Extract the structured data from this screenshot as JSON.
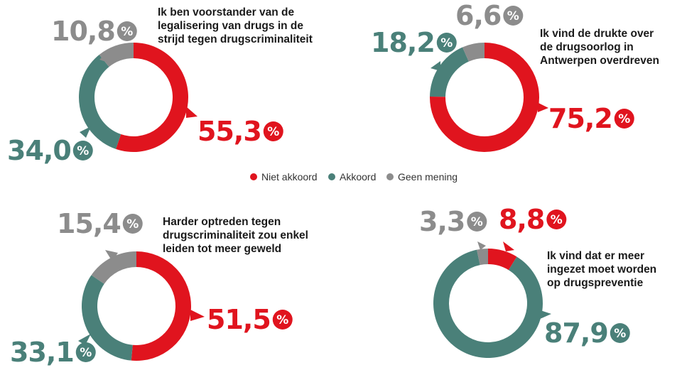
{
  "colors": {
    "niet_akkoord": "#e0141e",
    "akkoord": "#4a8079",
    "geen_mening": "#8c8c8c"
  },
  "legend": [
    "Niet akkoord",
    "Akkoord",
    "Geen mening"
  ],
  "percent_symbol": "%",
  "chart_data": [
    {
      "type": "pie",
      "title_lines": [
        "Ik ben voorstander van de",
        "legalisering van drugs in de",
        "strijd tegen drugscriminaliteit"
      ],
      "categories": [
        "Niet akkoord",
        "Akkoord",
        "Geen mening"
      ],
      "values": [
        55.3,
        34.0,
        10.8
      ],
      "labels": [
        "55,3",
        "34,0",
        "10,8"
      ]
    },
    {
      "type": "pie",
      "title_lines": [
        "Ik vind de drukte over",
        "de drugsoorlog in",
        "Antwerpen overdreven"
      ],
      "categories": [
        "Niet akkoord",
        "Akkoord",
        "Geen mening"
      ],
      "values": [
        75.2,
        18.2,
        6.6
      ],
      "labels": [
        "75,2",
        "18,2",
        "6,6"
      ]
    },
    {
      "type": "pie",
      "title_lines": [
        "Harder optreden tegen",
        "drugscriminaliteit zou enkel",
        "leiden tot meer geweld"
      ],
      "categories": [
        "Niet akkoord",
        "Akkoord",
        "Geen mening"
      ],
      "values": [
        51.5,
        33.1,
        15.4
      ],
      "labels": [
        "51,5",
        "33,1",
        "15,4"
      ]
    },
    {
      "type": "pie",
      "title_lines": [
        "Ik vind dat er meer",
        "ingezet moet worden",
        "op drugspreventie"
      ],
      "categories": [
        "Niet akkoord",
        "Akkoord",
        "Geen mening"
      ],
      "values": [
        8.8,
        87.9,
        3.3
      ],
      "labels": [
        "8,8",
        "87,9",
        "3,3"
      ]
    }
  ]
}
